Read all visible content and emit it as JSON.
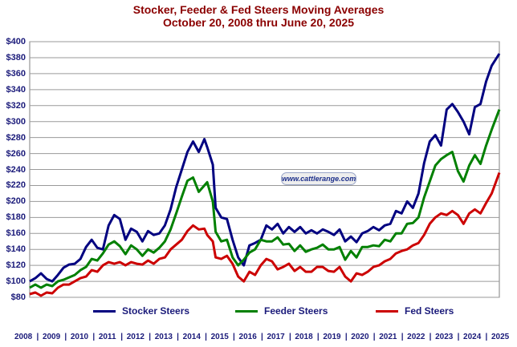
{
  "chart_data": {
    "type": "line",
    "title": "Stocker, Feeder & Fed Steers Moving Averages",
    "subtitle": "October 20, 2008 thru June 20, 2025",
    "watermark": "www.cattlerange.com",
    "ylim": [
      80,
      400
    ],
    "yticks": [
      "$400",
      "$380",
      "$360",
      "$340",
      "$320",
      "$300",
      "$280",
      "$260",
      "$240",
      "$220",
      "$200",
      "$180",
      "$160",
      "$140",
      "$120",
      "$100",
      "$80"
    ],
    "xtick_labels": [
      "2008",
      "2009",
      "2010",
      "2011",
      "2012",
      "2013",
      "2014",
      "2015",
      "2016",
      "2017",
      "2018",
      "2019",
      "2020",
      "2021",
      "2022",
      "2023",
      "2024",
      "2025"
    ],
    "xlim": [
      2008.8,
      2025.47
    ],
    "grid": true,
    "legend_position": "bottom",
    "series": [
      {
        "name": "Stocker Steers",
        "color": "#000080",
        "points": [
          [
            2008.8,
            100
          ],
          [
            2009.0,
            104
          ],
          [
            2009.2,
            110
          ],
          [
            2009.4,
            103
          ],
          [
            2009.6,
            100
          ],
          [
            2009.8,
            108
          ],
          [
            2010.0,
            117
          ],
          [
            2010.2,
            121
          ],
          [
            2010.4,
            122
          ],
          [
            2010.6,
            128
          ],
          [
            2010.8,
            143
          ],
          [
            2011.0,
            152
          ],
          [
            2011.2,
            142
          ],
          [
            2011.4,
            140
          ],
          [
            2011.6,
            170
          ],
          [
            2011.8,
            183
          ],
          [
            2012.0,
            178
          ],
          [
            2012.2,
            152
          ],
          [
            2012.4,
            166
          ],
          [
            2012.6,
            162
          ],
          [
            2012.8,
            150
          ],
          [
            2013.0,
            163
          ],
          [
            2013.2,
            158
          ],
          [
            2013.4,
            160
          ],
          [
            2013.6,
            170
          ],
          [
            2013.8,
            190
          ],
          [
            2014.0,
            218
          ],
          [
            2014.2,
            240
          ],
          [
            2014.4,
            262
          ],
          [
            2014.6,
            275
          ],
          [
            2014.8,
            262
          ],
          [
            2015.0,
            278
          ],
          [
            2015.1,
            268
          ],
          [
            2015.3,
            246
          ],
          [
            2015.4,
            192
          ],
          [
            2015.6,
            180
          ],
          [
            2015.8,
            178
          ],
          [
            2016.0,
            152
          ],
          [
            2016.2,
            130
          ],
          [
            2016.4,
            120
          ],
          [
            2016.6,
            145
          ],
          [
            2016.8,
            148
          ],
          [
            2017.0,
            152
          ],
          [
            2017.2,
            170
          ],
          [
            2017.4,
            165
          ],
          [
            2017.6,
            172
          ],
          [
            2017.8,
            160
          ],
          [
            2018.0,
            168
          ],
          [
            2018.2,
            162
          ],
          [
            2018.4,
            168
          ],
          [
            2018.6,
            160
          ],
          [
            2018.8,
            164
          ],
          [
            2019.0,
            160
          ],
          [
            2019.2,
            165
          ],
          [
            2019.4,
            162
          ],
          [
            2019.6,
            158
          ],
          [
            2019.8,
            165
          ],
          [
            2020.0,
            150
          ],
          [
            2020.2,
            156
          ],
          [
            2020.4,
            149
          ],
          [
            2020.6,
            160
          ],
          [
            2020.8,
            163
          ],
          [
            2021.0,
            168
          ],
          [
            2021.2,
            164
          ],
          [
            2021.4,
            170
          ],
          [
            2021.6,
            172
          ],
          [
            2021.8,
            188
          ],
          [
            2022.0,
            185
          ],
          [
            2022.2,
            200
          ],
          [
            2022.4,
            192
          ],
          [
            2022.6,
            210
          ],
          [
            2022.8,
            248
          ],
          [
            2023.0,
            275
          ],
          [
            2023.2,
            283
          ],
          [
            2023.4,
            270
          ],
          [
            2023.6,
            315
          ],
          [
            2023.8,
            322
          ],
          [
            2024.0,
            312
          ],
          [
            2024.2,
            300
          ],
          [
            2024.4,
            284
          ],
          [
            2024.6,
            318
          ],
          [
            2024.8,
            322
          ],
          [
            2025.0,
            350
          ],
          [
            2025.2,
            370
          ],
          [
            2025.47,
            385
          ]
        ]
      },
      {
        "name": "Feeder Steers",
        "color": "#008000",
        "points": [
          [
            2008.8,
            92
          ],
          [
            2009.0,
            96
          ],
          [
            2009.2,
            92
          ],
          [
            2009.4,
            96
          ],
          [
            2009.6,
            94
          ],
          [
            2009.8,
            100
          ],
          [
            2010.0,
            102
          ],
          [
            2010.2,
            105
          ],
          [
            2010.4,
            108
          ],
          [
            2010.6,
            114
          ],
          [
            2010.8,
            118
          ],
          [
            2011.0,
            128
          ],
          [
            2011.2,
            126
          ],
          [
            2011.4,
            135
          ],
          [
            2011.6,
            146
          ],
          [
            2011.8,
            150
          ],
          [
            2012.0,
            144
          ],
          [
            2012.2,
            134
          ],
          [
            2012.4,
            145
          ],
          [
            2012.6,
            140
          ],
          [
            2012.8,
            132
          ],
          [
            2013.0,
            140
          ],
          [
            2013.2,
            136
          ],
          [
            2013.4,
            142
          ],
          [
            2013.6,
            150
          ],
          [
            2013.8,
            165
          ],
          [
            2014.0,
            185
          ],
          [
            2014.2,
            206
          ],
          [
            2014.4,
            226
          ],
          [
            2014.6,
            230
          ],
          [
            2014.8,
            212
          ],
          [
            2015.0,
            220
          ],
          [
            2015.1,
            224
          ],
          [
            2015.3,
            200
          ],
          [
            2015.4,
            162
          ],
          [
            2015.6,
            150
          ],
          [
            2015.8,
            152
          ],
          [
            2016.0,
            130
          ],
          [
            2016.2,
            120
          ],
          [
            2016.4,
            127
          ],
          [
            2016.6,
            136
          ],
          [
            2016.8,
            140
          ],
          [
            2017.0,
            152
          ],
          [
            2017.2,
            150
          ],
          [
            2017.4,
            150
          ],
          [
            2017.6,
            155
          ],
          [
            2017.8,
            146
          ],
          [
            2018.0,
            147
          ],
          [
            2018.2,
            138
          ],
          [
            2018.4,
            145
          ],
          [
            2018.6,
            137
          ],
          [
            2018.8,
            140
          ],
          [
            2019.0,
            142
          ],
          [
            2019.2,
            146
          ],
          [
            2019.4,
            140
          ],
          [
            2019.6,
            140
          ],
          [
            2019.8,
            143
          ],
          [
            2020.0,
            127
          ],
          [
            2020.2,
            138
          ],
          [
            2020.4,
            130
          ],
          [
            2020.6,
            143
          ],
          [
            2020.8,
            143
          ],
          [
            2021.0,
            145
          ],
          [
            2021.2,
            144
          ],
          [
            2021.4,
            152
          ],
          [
            2021.6,
            150
          ],
          [
            2021.8,
            160
          ],
          [
            2022.0,
            160
          ],
          [
            2022.2,
            172
          ],
          [
            2022.4,
            173
          ],
          [
            2022.6,
            180
          ],
          [
            2022.8,
            205
          ],
          [
            2023.0,
            225
          ],
          [
            2023.2,
            245
          ],
          [
            2023.4,
            253
          ],
          [
            2023.6,
            258
          ],
          [
            2023.8,
            262
          ],
          [
            2024.0,
            238
          ],
          [
            2024.2,
            225
          ],
          [
            2024.4,
            245
          ],
          [
            2024.6,
            258
          ],
          [
            2024.8,
            247
          ],
          [
            2025.0,
            270
          ],
          [
            2025.2,
            290
          ],
          [
            2025.47,
            315
          ]
        ]
      },
      {
        "name": "Fed Steers",
        "color": "#cc0000",
        "points": [
          [
            2008.8,
            84
          ],
          [
            2009.0,
            86
          ],
          [
            2009.2,
            82
          ],
          [
            2009.4,
            86
          ],
          [
            2009.6,
            85
          ],
          [
            2009.8,
            92
          ],
          [
            2010.0,
            96
          ],
          [
            2010.2,
            96
          ],
          [
            2010.4,
            100
          ],
          [
            2010.6,
            104
          ],
          [
            2010.8,
            106
          ],
          [
            2011.0,
            114
          ],
          [
            2011.2,
            112
          ],
          [
            2011.4,
            120
          ],
          [
            2011.6,
            124
          ],
          [
            2011.8,
            122
          ],
          [
            2012.0,
            124
          ],
          [
            2012.2,
            120
          ],
          [
            2012.4,
            124
          ],
          [
            2012.6,
            122
          ],
          [
            2012.8,
            121
          ],
          [
            2013.0,
            126
          ],
          [
            2013.2,
            122
          ],
          [
            2013.4,
            128
          ],
          [
            2013.6,
            130
          ],
          [
            2013.8,
            140
          ],
          [
            2014.0,
            146
          ],
          [
            2014.2,
            152
          ],
          [
            2014.4,
            163
          ],
          [
            2014.6,
            170
          ],
          [
            2014.8,
            165
          ],
          [
            2015.0,
            166
          ],
          [
            2015.1,
            158
          ],
          [
            2015.3,
            150
          ],
          [
            2015.4,
            130
          ],
          [
            2015.6,
            128
          ],
          [
            2015.8,
            132
          ],
          [
            2016.0,
            122
          ],
          [
            2016.2,
            106
          ],
          [
            2016.4,
            100
          ],
          [
            2016.6,
            112
          ],
          [
            2016.8,
            108
          ],
          [
            2017.0,
            120
          ],
          [
            2017.2,
            128
          ],
          [
            2017.4,
            125
          ],
          [
            2017.6,
            115
          ],
          [
            2017.8,
            118
          ],
          [
            2018.0,
            122
          ],
          [
            2018.2,
            113
          ],
          [
            2018.4,
            118
          ],
          [
            2018.6,
            112
          ],
          [
            2018.8,
            112
          ],
          [
            2019.0,
            118
          ],
          [
            2019.2,
            118
          ],
          [
            2019.4,
            113
          ],
          [
            2019.6,
            112
          ],
          [
            2019.8,
            118
          ],
          [
            2020.0,
            106
          ],
          [
            2020.2,
            100
          ],
          [
            2020.4,
            110
          ],
          [
            2020.6,
            108
          ],
          [
            2020.8,
            112
          ],
          [
            2021.0,
            118
          ],
          [
            2021.2,
            120
          ],
          [
            2021.4,
            125
          ],
          [
            2021.6,
            128
          ],
          [
            2021.8,
            135
          ],
          [
            2022.0,
            138
          ],
          [
            2022.2,
            140
          ],
          [
            2022.4,
            145
          ],
          [
            2022.6,
            148
          ],
          [
            2022.8,
            158
          ],
          [
            2023.0,
            172
          ],
          [
            2023.2,
            180
          ],
          [
            2023.4,
            185
          ],
          [
            2023.6,
            183
          ],
          [
            2023.8,
            188
          ],
          [
            2024.0,
            183
          ],
          [
            2024.2,
            172
          ],
          [
            2024.4,
            185
          ],
          [
            2024.6,
            190
          ],
          [
            2024.8,
            185
          ],
          [
            2025.0,
            198
          ],
          [
            2025.2,
            210
          ],
          [
            2025.47,
            236
          ]
        ]
      }
    ]
  }
}
